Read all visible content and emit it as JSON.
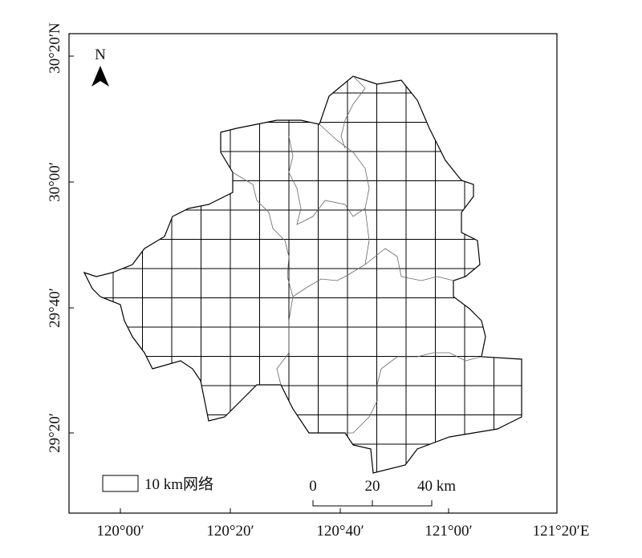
{
  "north_label": "N",
  "legend": {
    "label": "10 km网络"
  },
  "scale_bar": {
    "labels": [
      "0",
      "20",
      "40 km"
    ]
  },
  "axes": {
    "x_labels": [
      "120°00′",
      "120°20′",
      "120°40′",
      "121°00′",
      "121°20′E"
    ],
    "y_labels": [
      "30°20′N",
      "30°00′",
      "29°40′",
      "29°20′"
    ]
  }
}
